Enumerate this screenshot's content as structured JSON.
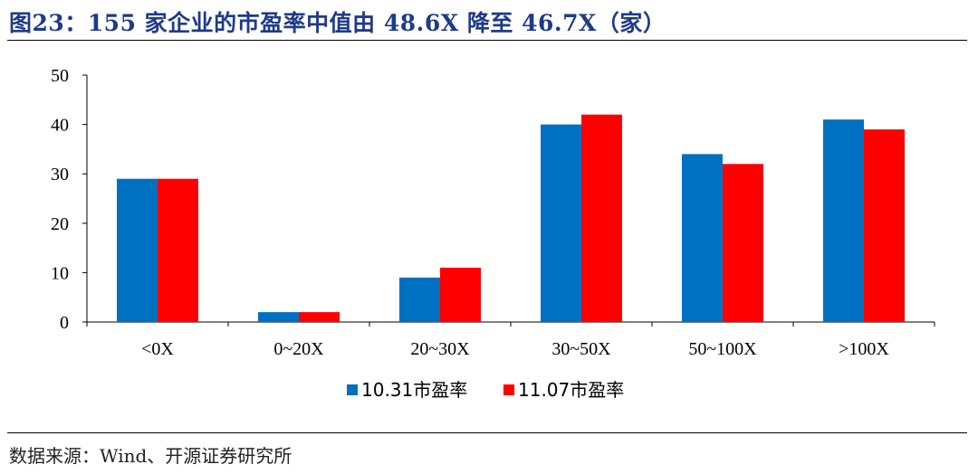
{
  "title": "图23：155 家企业的市盈率中值由 48.6X 降至 46.7X（家）",
  "source": "数据来源：Wind、开源证券研究所",
  "colors": {
    "series1": "#0070c0",
    "series2": "#ff0000",
    "title": "#1f3a8a"
  },
  "chart_data": {
    "type": "bar",
    "title": "",
    "xlabel": "",
    "ylabel": "",
    "categories": [
      "<0X",
      "0~20X",
      "20~30X",
      "30~50X",
      "50~100X",
      ">100X"
    ],
    "series": [
      {
        "name": "10.31市盈率",
        "values": [
          29,
          2,
          9,
          40,
          34,
          41
        ]
      },
      {
        "name": "11.07市盈率",
        "values": [
          29,
          2,
          11,
          42,
          32,
          39
        ]
      }
    ],
    "ylim": [
      0,
      50
    ],
    "yticks": [
      "0",
      "10",
      "20",
      "30",
      "40",
      "50"
    ],
    "grid": false,
    "legend": "bottom-center"
  }
}
